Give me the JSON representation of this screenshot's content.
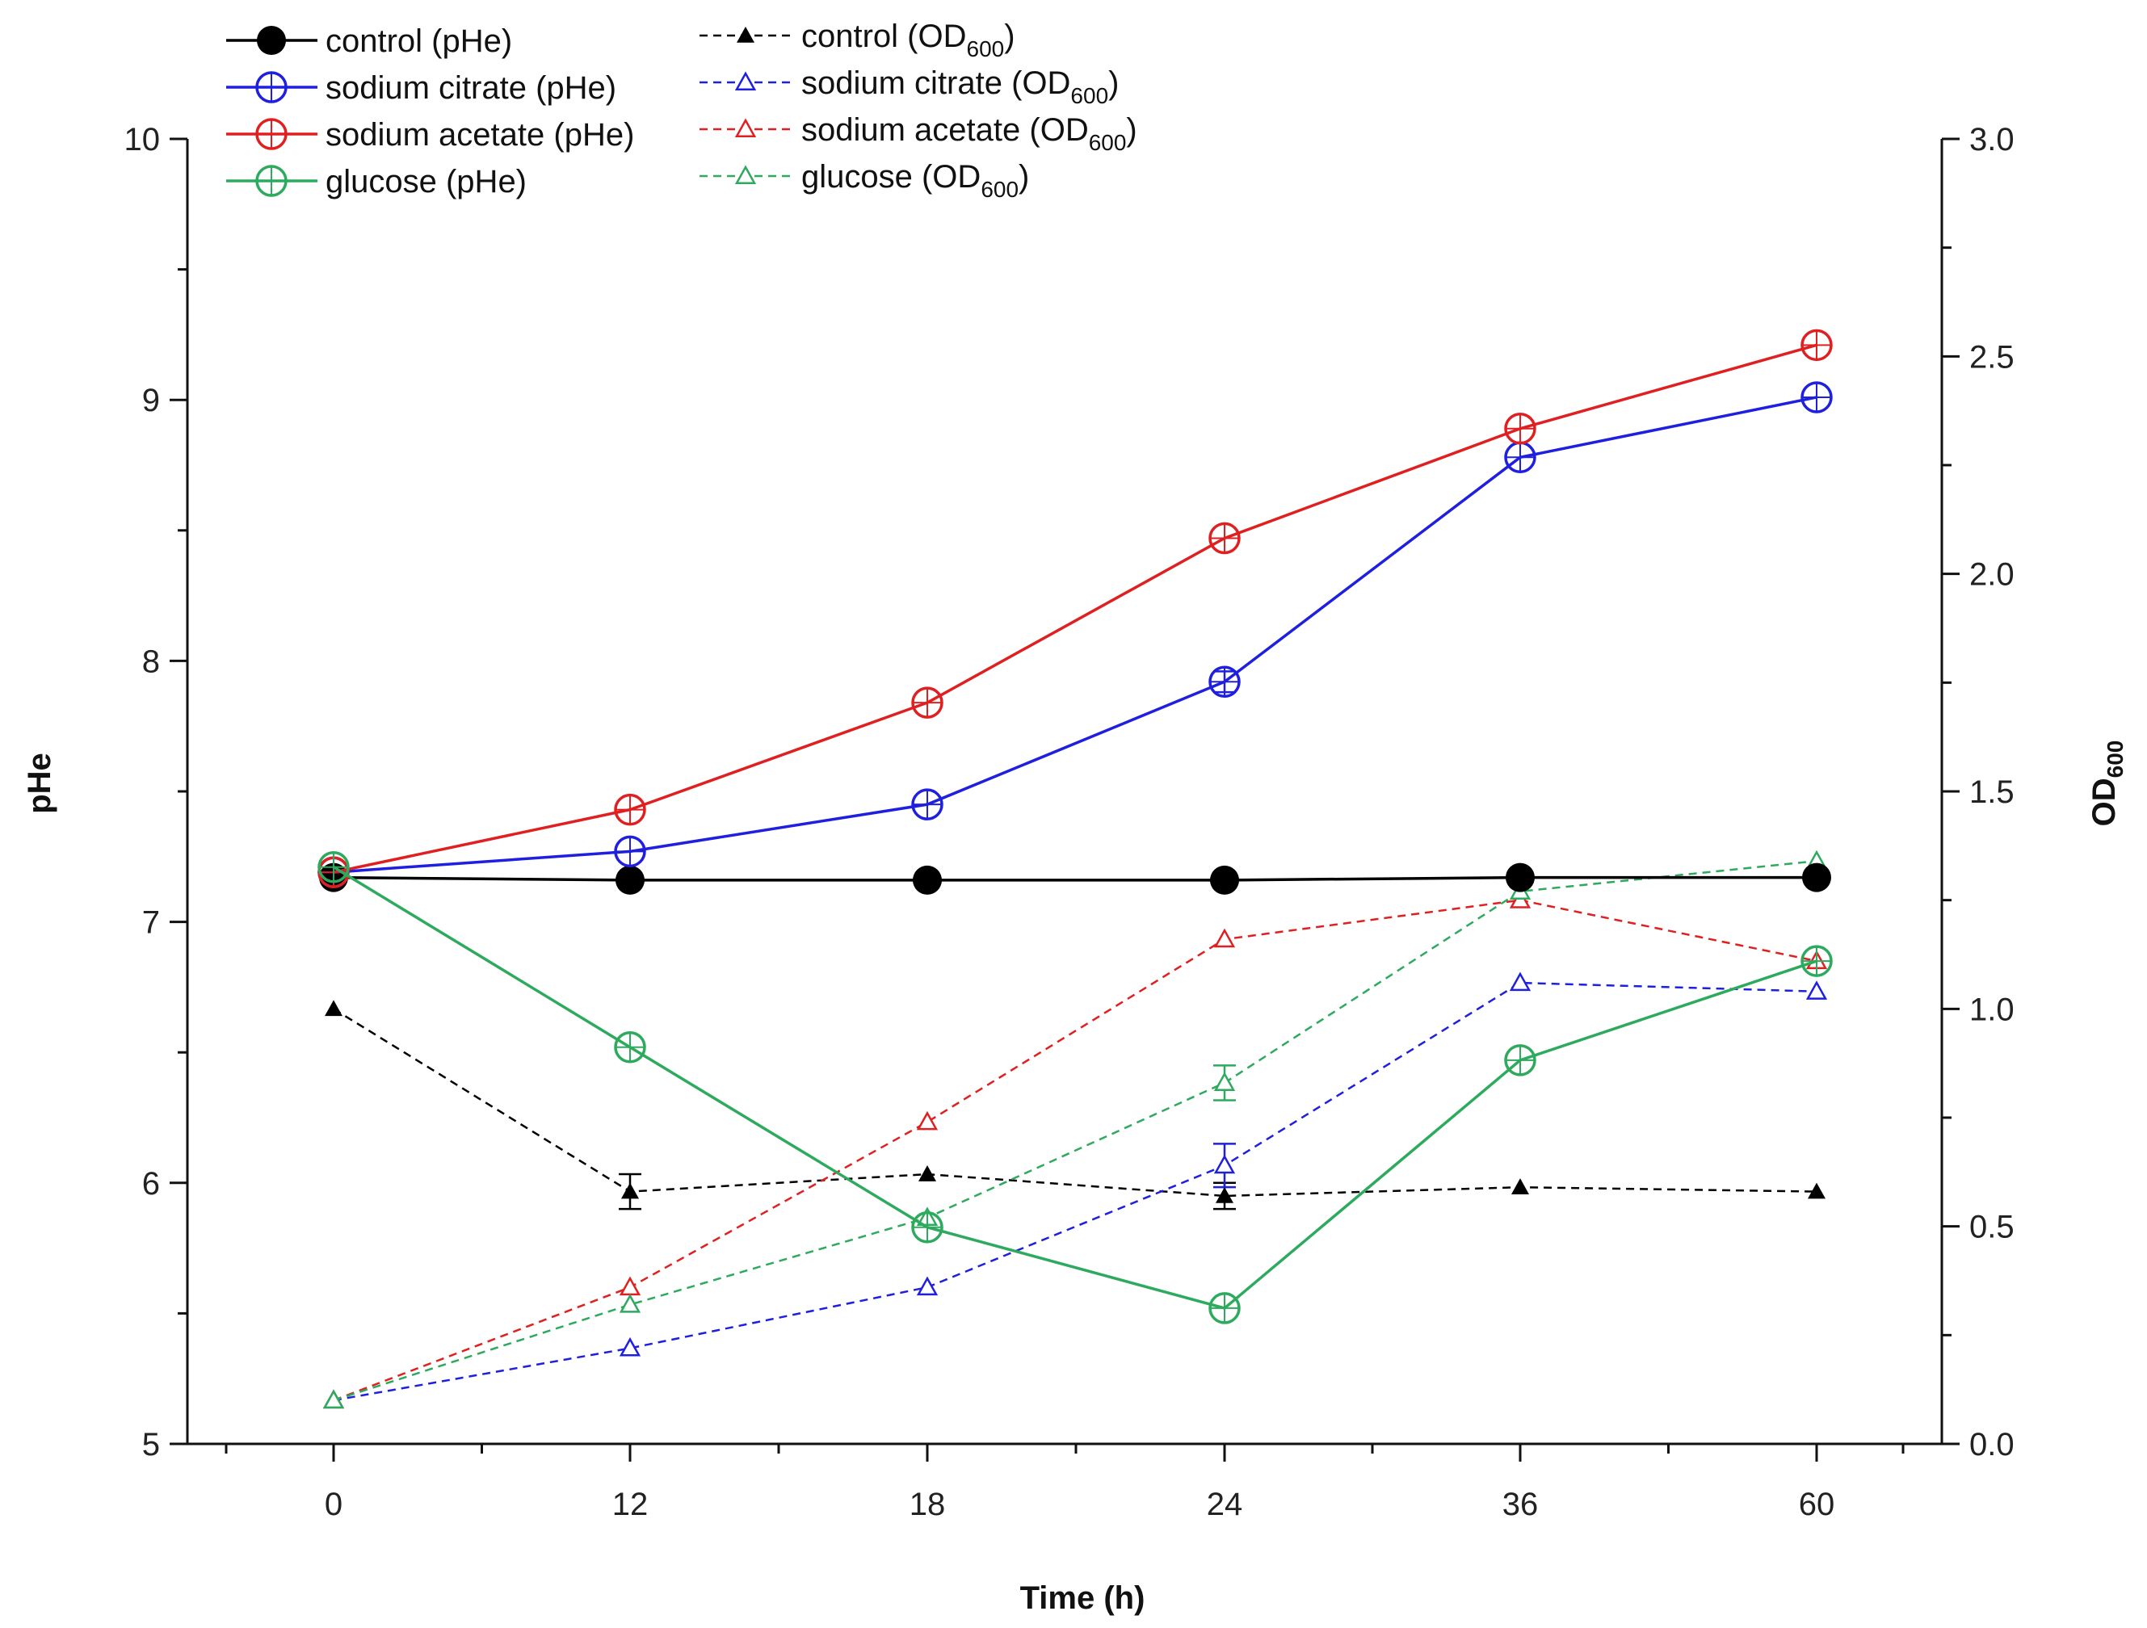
{
  "chart_data": {
    "type": "line",
    "x_categories": [
      "0",
      "12",
      "18",
      "24",
      "36",
      "60"
    ],
    "xlabel_main": "Time",
    "xlabel_unit": "(h)",
    "ylabel_left": "pHe",
    "ylabel_right_main": "OD",
    "ylabel_right_sub": "600",
    "ylim_left": [
      5,
      10
    ],
    "ylim_right": [
      0.0,
      3.0
    ],
    "yticks_left": [
      "5",
      "6",
      "7",
      "8",
      "9",
      "10"
    ],
    "yticks_right": [
      "0.0",
      "0.5",
      "1.0",
      "1.5",
      "2.0",
      "2.5",
      "3.0"
    ],
    "series_phe": [
      {
        "name": "control (pHe)",
        "color": "#000000",
        "marker": "filled-circle",
        "values": [
          7.17,
          7.16,
          7.16,
          7.16,
          7.17,
          7.17
        ],
        "errors": [
          0,
          0,
          0,
          0,
          0,
          0
        ]
      },
      {
        "name": "sodium citrate (pHe)",
        "color": "#1f1fe0",
        "marker": "open-circle",
        "values": [
          7.19,
          7.27,
          7.45,
          7.92,
          8.78,
          9.01
        ],
        "errors": [
          0,
          0,
          0,
          0.04,
          0,
          0
        ]
      },
      {
        "name": "sodium acetate (pHe)",
        "color": "#e02020",
        "marker": "open-circle",
        "values": [
          7.19,
          7.43,
          7.84,
          8.47,
          8.89,
          9.21
        ],
        "errors": [
          0,
          0,
          0,
          0,
          0,
          0
        ]
      },
      {
        "name": "glucose (pHe)",
        "color": "#2eaa5e",
        "marker": "open-circle",
        "values": [
          7.21,
          6.52,
          5.83,
          5.52,
          6.47,
          6.85
        ],
        "errors": [
          0,
          0,
          0,
          0,
          0,
          0
        ]
      }
    ],
    "series_od": [
      {
        "name_main": "control (OD",
        "name_sub": "600",
        "name_end": ")",
        "color": "#000000",
        "marker": "filled-triangle",
        "values": [
          1.0,
          0.58,
          0.62,
          0.57,
          0.59,
          0.58
        ],
        "errors": [
          0,
          0.04,
          0,
          0.03,
          0,
          0
        ]
      },
      {
        "name_main": "sodium citrate (OD",
        "name_sub": "600",
        "name_end": ")",
        "color": "#1f1fe0",
        "marker": "open-triangle",
        "values": [
          0.1,
          0.22,
          0.36,
          0.64,
          1.06,
          1.04
        ],
        "errors": [
          0,
          0,
          0,
          0.05,
          0,
          0
        ]
      },
      {
        "name_main": "sodium acetate (OD",
        "name_sub": "600",
        "name_end": ")",
        "color": "#e02020",
        "marker": "open-triangle",
        "values": [
          0.1,
          0.36,
          0.74,
          1.16,
          1.25,
          1.11
        ],
        "errors": [
          0,
          0,
          0,
          0,
          0,
          0
        ]
      },
      {
        "name_main": "glucose (OD",
        "name_sub": "600",
        "name_end": ")",
        "color": "#2eaa5e",
        "marker": "open-triangle",
        "values": [
          0.1,
          0.32,
          0.52,
          0.83,
          1.27,
          1.34
        ],
        "errors": [
          0,
          0,
          0,
          0.04,
          0,
          0
        ]
      }
    ]
  }
}
